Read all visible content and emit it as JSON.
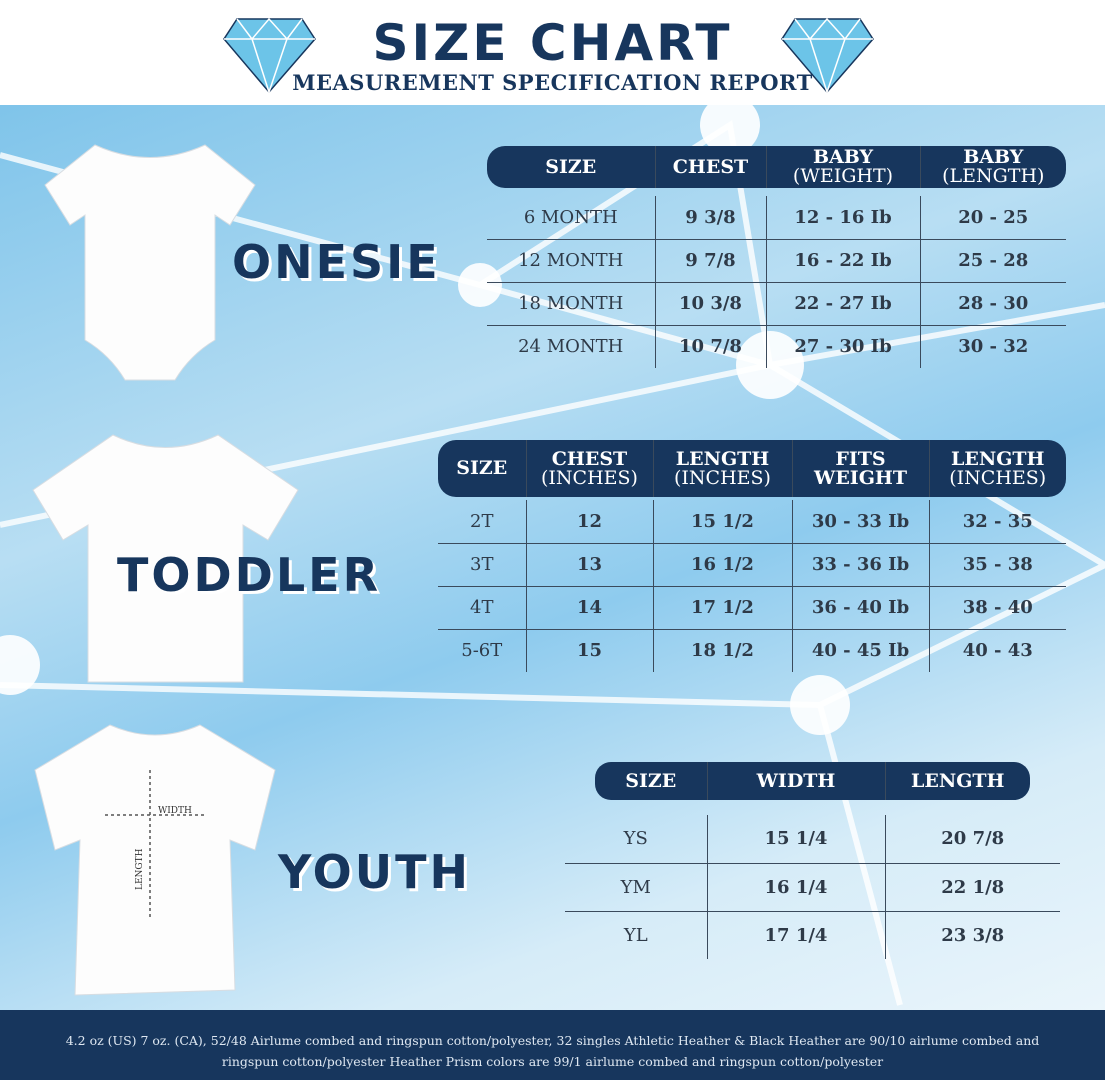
{
  "header": {
    "title": "SIZE CHART",
    "subtitle": "MEASUREMENT SPECIFICATION REPORT"
  },
  "colors": {
    "navy": "#17365d",
    "gem": "#6cc4e8"
  },
  "onesie": {
    "label": "ONESIE",
    "headers": [
      {
        "main": "SIZE",
        "sub": ""
      },
      {
        "main": "CHEST",
        "sub": ""
      },
      {
        "main": "BABY",
        "sub": "(WEIGHT)"
      },
      {
        "main": "BABY",
        "sub": "(LENGTH)"
      }
    ],
    "rows": [
      [
        "6 MONTH",
        "9 3/8",
        "12 - 16 Ib",
        "20 - 25"
      ],
      [
        "12 MONTH",
        "9 7/8",
        "16 - 22 Ib",
        "25 - 28"
      ],
      [
        "18  MONTH",
        "10 3/8",
        "22 - 27 Ib",
        "28 - 30"
      ],
      [
        "24 MONTH",
        "10 7/8",
        "27 - 30 Ib",
        "30 - 32"
      ]
    ]
  },
  "toddler": {
    "label": "TODDLER",
    "headers": [
      {
        "main": "SIZE",
        "sub": ""
      },
      {
        "main": "CHEST",
        "sub": "(INCHES)"
      },
      {
        "main": "LENGTH",
        "sub": "(INCHES)"
      },
      {
        "main": "FITS",
        "sub": "WEIGHT"
      },
      {
        "main": "LENGTH",
        "sub": "(INCHES)"
      }
    ],
    "rows": [
      [
        "2T",
        "12",
        "15 1/2",
        "30 - 33 Ib",
        "32 - 35"
      ],
      [
        "3T",
        "13",
        "16 1/2",
        "33 - 36 Ib",
        "35 - 38"
      ],
      [
        "4T",
        "14",
        "17 1/2",
        "36 - 40 Ib",
        "38 - 40"
      ],
      [
        "5-6T",
        "15",
        "18 1/2",
        "40 - 45 Ib",
        "40 - 43"
      ]
    ]
  },
  "youth": {
    "label": "YOUTH",
    "width_label": "WIDTH",
    "length_label": "LENGTH",
    "headers": [
      "SIZE",
      "WIDTH",
      "LENGTH"
    ],
    "rows": [
      [
        "YS",
        "15 1/4",
        "20 7/8"
      ],
      [
        "YM",
        "16 1/4",
        "22 1/8"
      ],
      [
        "YL",
        "17 1/4",
        "23 3/8"
      ]
    ]
  },
  "footer": {
    "text": "4.2 oz (US) 7 oz. (CA), 52/48 Airlume combed and ringspun cotton/polyester, 32 singles Athletic Heather & Black Heather are 90/10 airlume combed and ringspun cotton/polyester Heather Prism colors are 99/1 airlume combed and ringspun cotton/polyester"
  }
}
